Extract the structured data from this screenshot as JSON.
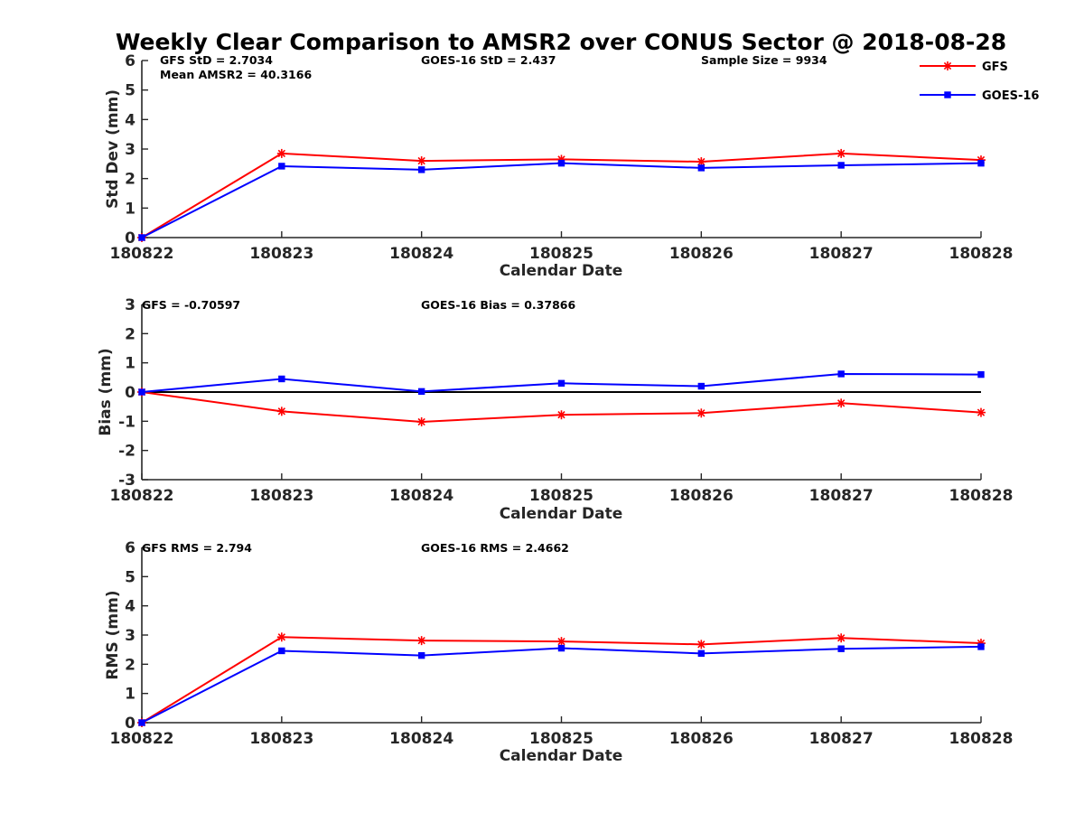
{
  "figure_title": "Weekly Clear Comparison to AMSR2 over CONUS Sector @ 2018-08-28",
  "legend": [
    {
      "name": "GFS",
      "color": "#ff0000",
      "marker": "asterisk"
    },
    {
      "name": "GOES-16",
      "color": "#0000ff",
      "marker": "square"
    }
  ],
  "chart_data": [
    {
      "type": "line",
      "xlabel": "Calendar Date",
      "ylabel": "Std Dev (mm)",
      "ylim": [
        0,
        6
      ],
      "yticks": [
        "0",
        "1",
        "2",
        "3",
        "4",
        "5",
        "6"
      ],
      "categories": [
        "180822",
        "180823",
        "180824",
        "180825",
        "180826",
        "180827",
        "180828"
      ],
      "series": [
        {
          "name": "GFS",
          "color": "#ff0000",
          "values": [
            0,
            2.85,
            2.6,
            2.65,
            2.57,
            2.85,
            2.63
          ]
        },
        {
          "name": "GOES-16",
          "color": "#0000ff",
          "values": [
            0,
            2.42,
            2.3,
            2.52,
            2.36,
            2.45,
            2.52
          ]
        }
      ],
      "annotations": [
        "GFS StD = 2.7034",
        "Mean AMSR2 = 40.3166",
        "GOES-16 StD = 2.437",
        "Sample Size = 9934"
      ]
    },
    {
      "type": "line",
      "xlabel": "Calendar Date",
      "ylabel": "Bias (mm)",
      "ylim": [
        -3,
        3
      ],
      "yticks": [
        "-3",
        "-2",
        "-1",
        "0",
        "1",
        "2",
        "3"
      ],
      "zero_line": true,
      "categories": [
        "180822",
        "180823",
        "180824",
        "180825",
        "180826",
        "180827",
        "180828"
      ],
      "series": [
        {
          "name": "GFS",
          "color": "#ff0000",
          "values": [
            0,
            -0.66,
            -1.02,
            -0.78,
            -0.72,
            -0.38,
            -0.7
          ]
        },
        {
          "name": "GOES-16",
          "color": "#0000ff",
          "values": [
            0,
            0.45,
            0.02,
            0.3,
            0.2,
            0.62,
            0.6
          ]
        }
      ],
      "annotations": [
        "GFS = -0.70597",
        "GOES-16 Bias  = 0.37866"
      ]
    },
    {
      "type": "line",
      "xlabel": "Calendar Date",
      "ylabel": "RMS (mm)",
      "ylim": [
        0,
        6
      ],
      "yticks": [
        "0",
        "1",
        "2",
        "3",
        "4",
        "5",
        "6"
      ],
      "categories": [
        "180822",
        "180823",
        "180824",
        "180825",
        "180826",
        "180827",
        "180828"
      ],
      "series": [
        {
          "name": "GFS",
          "color": "#ff0000",
          "values": [
            0,
            2.93,
            2.81,
            2.78,
            2.68,
            2.9,
            2.72
          ]
        },
        {
          "name": "GOES-16",
          "color": "#0000ff",
          "values": [
            0,
            2.46,
            2.3,
            2.55,
            2.37,
            2.53,
            2.6
          ]
        }
      ],
      "annotations": [
        "GFS RMS = 2.794",
        "GOES-16 RMS = 2.4662"
      ]
    }
  ]
}
